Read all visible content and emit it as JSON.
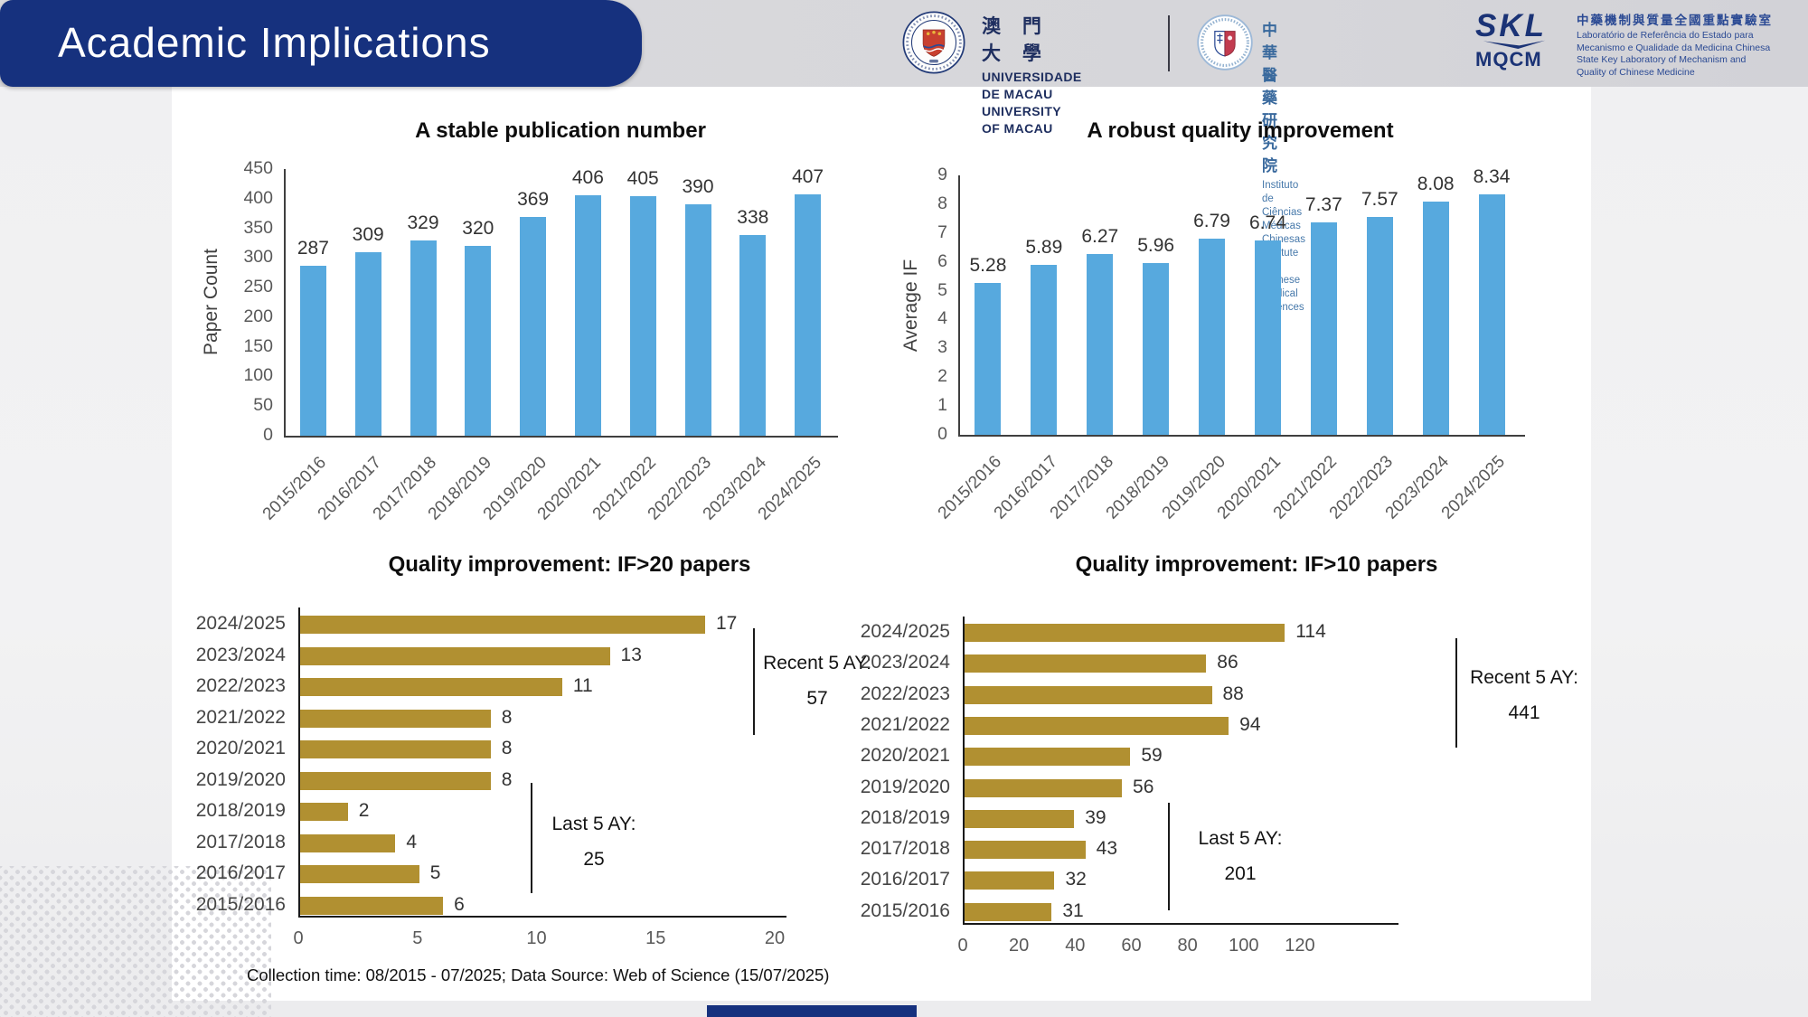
{
  "slide": {
    "title": "Academic Implications",
    "footer_note": "Collection time: 08/2015 - 07/2025; Data Source: Web of Science (15/07/2025)"
  },
  "header": {
    "logos": [
      {
        "id": "university-of-macau",
        "line1": "澳 門 大 學",
        "line2": "UNIVERSIDADE DE MACAU",
        "line3": "UNIVERSITY OF MACAU"
      },
      {
        "id": "institute-of-chinese-medical-sciences",
        "line1": "中 華 醫 藥 研 究 院",
        "line2": "Instituto de Ciências Médicas Chinesas",
        "line3": "Institute of Chinese Medical Sciences"
      },
      {
        "id": "skl-mqcm",
        "mark_top": "SKL",
        "mark_bottom": "MQCM",
        "line1": "中藥機制與質量全國重點實驗室",
        "line2": "Laboratório de Referência do Estado para",
        "line3": "Mecanismo e Qualidade da Medicina Chinesa",
        "line4": "State Key Laboratory of Mechanism and",
        "line5": "Quality of Chinese Medicine"
      }
    ]
  },
  "colors": {
    "navy": "#16317E",
    "bar_blue": "#57A9DE",
    "bar_gold": "#B19031"
  },
  "chart_data": [
    {
      "id": "publication-count",
      "type": "bar",
      "title": "A stable publication number",
      "xlabel": "",
      "ylabel": "Paper Count",
      "categories": [
        "2015/2016",
        "2016/2017",
        "2017/2018",
        "2018/2019",
        "2019/2020",
        "2020/2021",
        "2021/2022",
        "2022/2023",
        "2023/2024",
        "2024/2025"
      ],
      "values": [
        287,
        309,
        329,
        320,
        369,
        406,
        405,
        390,
        338,
        407
      ],
      "ylim": [
        0,
        450
      ],
      "yticks": [
        0,
        50,
        100,
        150,
        200,
        250,
        300,
        350,
        400,
        450
      ],
      "grid": false,
      "legend": "none",
      "bar_color": "#57A9DE"
    },
    {
      "id": "average-if",
      "type": "bar",
      "title": "A robust quality improvement",
      "xlabel": "",
      "ylabel": "Average IF",
      "categories": [
        "2015/2016",
        "2016/2017",
        "2017/2018",
        "2018/2019",
        "2019/2020",
        "2020/2021",
        "2021/2022",
        "2022/2023",
        "2023/2024",
        "2024/2025"
      ],
      "values": [
        5.28,
        5.89,
        6.27,
        5.96,
        6.79,
        6.74,
        7.37,
        7.57,
        8.08,
        8.34
      ],
      "ylim": [
        0,
        9
      ],
      "yticks": [
        0,
        1,
        2,
        3,
        4,
        5,
        6,
        7,
        8,
        9
      ],
      "grid": false,
      "legend": "none",
      "bar_color": "#57A9DE"
    },
    {
      "id": "if-gt-20-papers",
      "type": "bar",
      "orientation": "horizontal",
      "title": "Quality improvement: IF>20 papers",
      "categories": [
        "2024/2025",
        "2023/2024",
        "2022/2023",
        "2021/2022",
        "2020/2021",
        "2019/2020",
        "2018/2019",
        "2017/2018",
        "2016/2017",
        "2015/2016"
      ],
      "values": [
        17,
        13,
        11,
        8,
        8,
        8,
        2,
        4,
        5,
        6
      ],
      "xlim": [
        0,
        20
      ],
      "xticks": [
        0,
        5,
        10,
        15,
        20
      ],
      "grid": false,
      "legend": "none",
      "bar_color": "#B19031",
      "annotations": [
        {
          "label": "Recent 5 AY:",
          "value": "57"
        },
        {
          "label": "Last 5 AY:",
          "value": "25"
        }
      ]
    },
    {
      "id": "if-gt-10-papers",
      "type": "bar",
      "orientation": "horizontal",
      "title": "Quality improvement: IF>10 papers",
      "categories": [
        "2024/2025",
        "2023/2024",
        "2022/2023",
        "2021/2022",
        "2020/2021",
        "2019/2020",
        "2018/2019",
        "2017/2018",
        "2016/2017",
        "2015/2016"
      ],
      "values": [
        114,
        86,
        88,
        94,
        59,
        56,
        39,
        43,
        32,
        31
      ],
      "xlim": [
        0,
        120
      ],
      "xticks": [
        0,
        20,
        40,
        60,
        80,
        100,
        120
      ],
      "grid": false,
      "legend": "none",
      "bar_color": "#B19031",
      "annotations": [
        {
          "label": "Recent 5 AY:",
          "value": "441"
        },
        {
          "label": "Last 5 AY:",
          "value": "201"
        }
      ]
    }
  ]
}
